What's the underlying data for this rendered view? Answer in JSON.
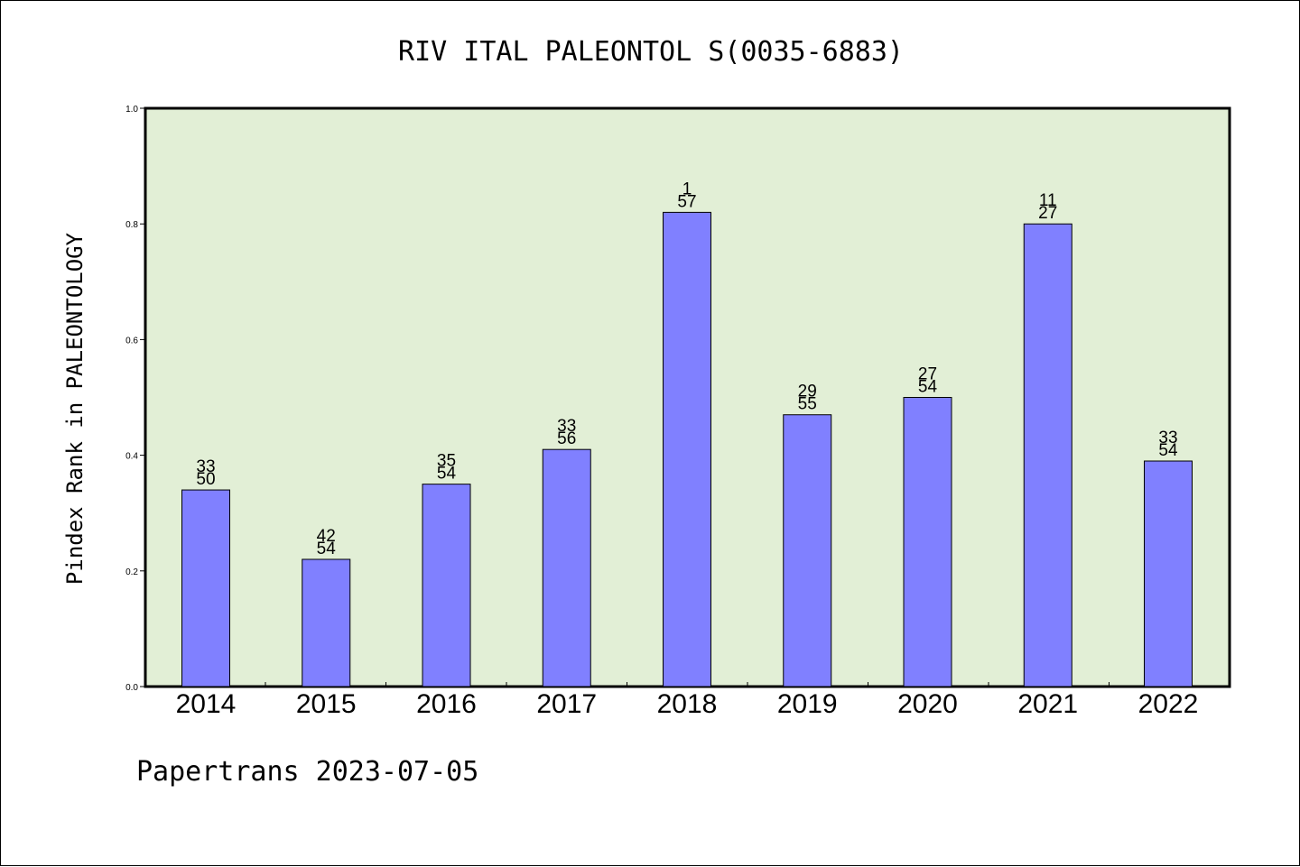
{
  "chart_data": {
    "type": "bar",
    "title": "RIV ITAL PALEONTOL S(0035-6883)",
    "ylabel": "Pindex Rank in PALEONTOLOGY",
    "xlabel": "",
    "footer": "Papertrans 2023-07-05",
    "categories": [
      "2014",
      "2015",
      "2016",
      "2017",
      "2018",
      "2019",
      "2020",
      "2021",
      "2022"
    ],
    "values": [
      0.34,
      0.22,
      0.35,
      0.41,
      0.82,
      0.47,
      0.5,
      0.8,
      0.39
    ],
    "rank": [
      "33",
      "42",
      "35",
      "33",
      "1",
      "29",
      "27",
      "11",
      "33"
    ],
    "total": [
      "50",
      "54",
      "54",
      "56",
      "57",
      "55",
      "54",
      "27",
      "54"
    ],
    "ylim": [
      0,
      1.0
    ],
    "yticks": [
      "0.0",
      "0.2",
      "0.4",
      "0.6",
      "0.8",
      "1.0"
    ],
    "grid": false,
    "legend": "none",
    "colors": {
      "bar": "#8080ff",
      "plot_background": "#e2efd6",
      "axis": "#000000"
    }
  }
}
